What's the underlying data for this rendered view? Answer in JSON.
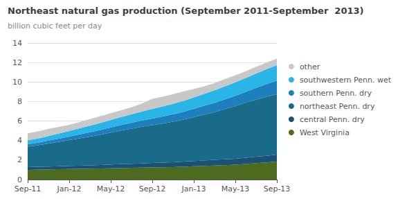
{
  "chart_data": {
    "type": "area",
    "stacked": true,
    "title": "Northeast natural gas production (September 2011-September  2013)",
    "subtitle": "billion cubic feet per day",
    "categories": [
      "Sep-11",
      null,
      null,
      null,
      "Jan-12",
      null,
      null,
      null,
      "May-12",
      null,
      null,
      null,
      "Sep-12",
      null,
      null,
      null,
      "Jan-13",
      null,
      null,
      null,
      "May-13",
      null,
      null,
      null,
      "Sep-13"
    ],
    "series": [
      {
        "name": "West Virginia",
        "color": "#4d6b1e",
        "values": [
          1.0,
          1.02,
          1.04,
          1.06,
          1.08,
          1.1,
          1.12,
          1.14,
          1.16,
          1.18,
          1.2,
          1.22,
          1.24,
          1.26,
          1.28,
          1.32,
          1.36,
          1.4,
          1.44,
          1.48,
          1.52,
          1.6,
          1.68,
          1.76,
          1.85
        ]
      },
      {
        "name": "central Penn. dry",
        "color": "#1a5276",
        "values": [
          0.28,
          0.29,
          0.3,
          0.31,
          0.32,
          0.33,
          0.34,
          0.36,
          0.38,
          0.4,
          0.42,
          0.44,
          0.46,
          0.48,
          0.5,
          0.52,
          0.54,
          0.56,
          0.58,
          0.6,
          0.62,
          0.64,
          0.66,
          0.68,
          0.7
        ]
      },
      {
        "name": "northeast Penn. dry",
        "color": "#1a6b8a",
        "values": [
          2.1,
          2.2,
          2.35,
          2.5,
          2.65,
          2.8,
          2.95,
          3.1,
          3.28,
          3.45,
          3.6,
          3.75,
          3.88,
          4.0,
          4.15,
          4.3,
          4.5,
          4.7,
          4.9,
          5.15,
          5.4,
          5.65,
          5.85,
          6.05,
          6.2
        ]
      },
      {
        "name": "southern Penn. dry",
        "color": "#1e7fbe",
        "values": [
          0.25,
          0.27,
          0.3,
          0.33,
          0.36,
          0.4,
          0.44,
          0.48,
          0.52,
          0.56,
          0.6,
          0.64,
          0.68,
          0.72,
          0.76,
          0.8,
          0.85,
          0.9,
          0.95,
          1.0,
          1.05,
          1.1,
          1.2,
          1.3,
          1.4
        ]
      },
      {
        "name": "southwestern Penn. wet",
        "color": "#29b5e8",
        "values": [
          0.4,
          0.43,
          0.47,
          0.52,
          0.57,
          0.63,
          0.68,
          0.73,
          0.78,
          0.83,
          0.88,
          0.93,
          0.98,
          1.03,
          1.08,
          1.13,
          1.18,
          1.23,
          1.28,
          1.33,
          1.38,
          1.43,
          1.48,
          1.53,
          1.58
        ]
      },
      {
        "name": "other",
        "color": "#c8c8c8",
        "values": [
          0.72,
          0.73,
          0.74,
          0.68,
          0.63,
          0.64,
          0.67,
          0.69,
          0.68,
          0.68,
          0.7,
          0.82,
          1.04,
          1.01,
          0.99,
          0.98,
          0.87,
          0.77,
          0.75,
          0.74,
          0.73,
          0.68,
          0.69,
          0.68,
          0.67
        ]
      }
    ],
    "ylim": [
      0,
      14
    ],
    "yticks": [
      0,
      2,
      4,
      6,
      8,
      10,
      12,
      14
    ],
    "grid": true,
    "legend": "right"
  }
}
